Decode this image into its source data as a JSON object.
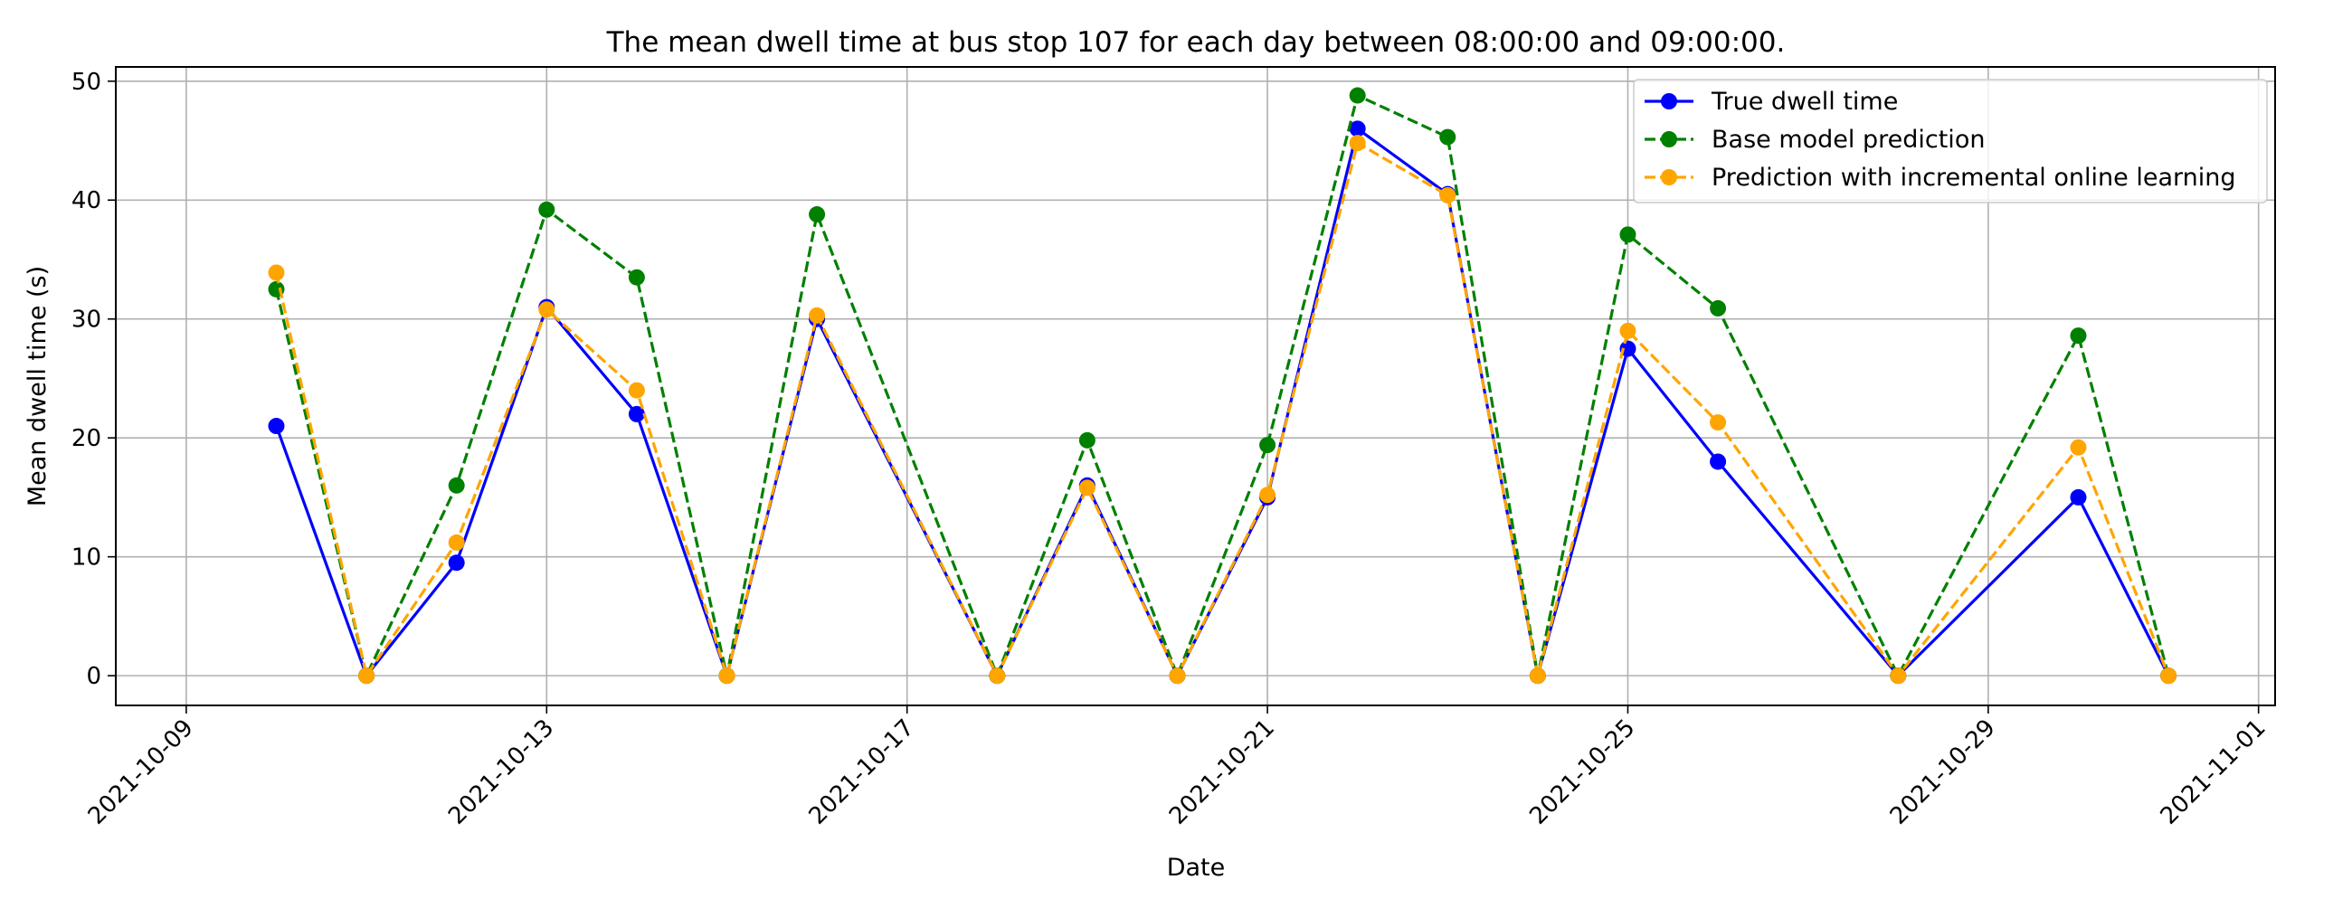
{
  "chart_data": {
    "type": "line",
    "title": "The mean dwell time at bus stop 107 for each day between 08:00:00 and 09:00:00.",
    "xlabel": "Date",
    "ylabel": "Mean dwell time (s)",
    "x_ticks": [
      "2021-10-09",
      "2021-10-13",
      "2021-10-17",
      "2021-10-21",
      "2021-10-25",
      "2021-10-29",
      "2021-11-01"
    ],
    "x_range": [
      "2021-10-09",
      "2021-11-01"
    ],
    "ylim": [
      -2.5,
      51.2
    ],
    "y_ticks": [
      0,
      10,
      20,
      30,
      40,
      50
    ],
    "grid": true,
    "legend_position": "upper-right",
    "x": [
      "2021-10-10",
      "2021-10-11",
      "2021-10-12",
      "2021-10-13",
      "2021-10-14",
      "2021-10-15",
      "2021-10-16",
      "2021-10-18",
      "2021-10-19",
      "2021-10-20",
      "2021-10-21",
      "2021-10-22",
      "2021-10-23",
      "2021-10-24",
      "2021-10-25",
      "2021-10-26",
      "2021-10-28",
      "2021-10-30",
      "2021-10-31"
    ],
    "series": [
      {
        "name": "True dwell time",
        "color": "#0000ff",
        "style": "solid",
        "values": [
          21.0,
          0,
          9.5,
          31.0,
          22.0,
          0,
          30.0,
          0,
          16.0,
          0,
          15.0,
          46.0,
          40.5,
          0,
          27.5,
          18.0,
          0,
          15.0,
          0
        ]
      },
      {
        "name": "Base model prediction",
        "color": "#008000",
        "style": "dashed",
        "values": [
          32.5,
          0,
          16.0,
          39.2,
          33.5,
          0,
          38.8,
          0,
          19.8,
          0,
          19.4,
          48.8,
          45.3,
          0,
          37.1,
          30.9,
          0,
          28.6,
          0
        ]
      },
      {
        "name": "Prediction with incremental online learning",
        "color": "#ffa500",
        "style": "dashed",
        "values": [
          33.9,
          0,
          11.2,
          30.8,
          24.0,
          0,
          30.3,
          0,
          15.8,
          0,
          15.2,
          44.8,
          40.4,
          0,
          29.0,
          21.3,
          0,
          19.2,
          0
        ]
      }
    ]
  }
}
